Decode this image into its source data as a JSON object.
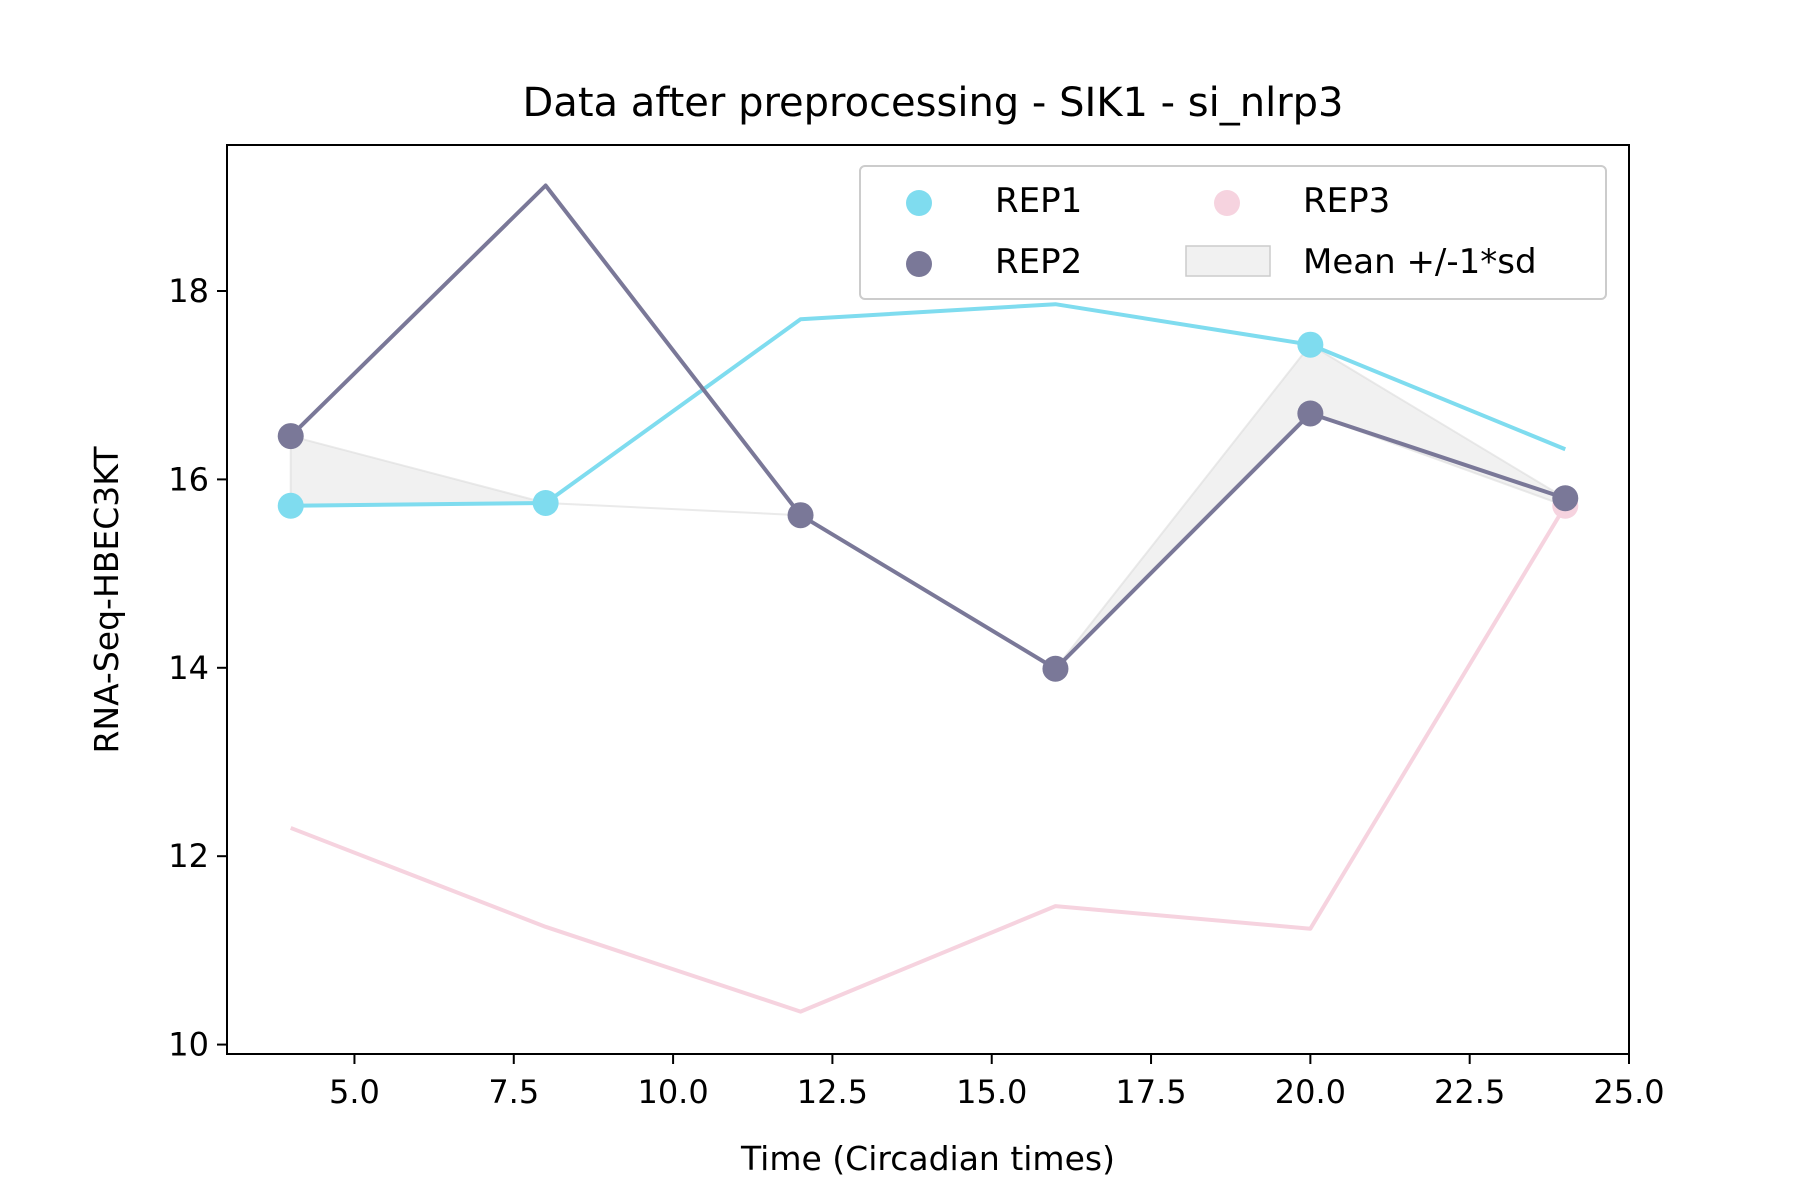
{
  "chart_data": {
    "type": "line",
    "title": "Data after preprocessing - SIK1 - si_nlrp3",
    "xlabel": "Time (Circadian times)",
    "ylabel": "RNA-Seq-HBEC3KT",
    "xlim": [
      3.0,
      25.0
    ],
    "ylim": [
      9.9,
      19.55
    ],
    "x_ticks": [
      5.0,
      7.5,
      10.0,
      12.5,
      15.0,
      17.5,
      20.0,
      22.5,
      25.0
    ],
    "x_tick_labels": [
      "5.0",
      "7.5",
      "10.0",
      "12.5",
      "15.0",
      "17.5",
      "20.0",
      "22.5",
      "25.0"
    ],
    "y_ticks": [
      10,
      12,
      14,
      16,
      18
    ],
    "y_tick_labels": [
      "10",
      "12",
      "14",
      "16",
      "18"
    ],
    "grid": false,
    "legend_position": "top-right",
    "legend_columns": 2,
    "x": [
      4,
      8,
      12,
      16,
      20,
      24
    ],
    "series": [
      {
        "name": "REP1",
        "color": "#7fdcef",
        "values": [
          15.72,
          15.75,
          17.7,
          17.86,
          17.43,
          16.32
        ],
        "markers": [
          true,
          true,
          false,
          false,
          true,
          false
        ]
      },
      {
        "name": "REP2",
        "color": "#7a7898",
        "values": [
          16.46,
          19.12,
          15.62,
          13.99,
          16.7,
          15.8
        ],
        "markers": [
          true,
          false,
          true,
          true,
          true,
          true
        ]
      },
      {
        "name": "REP3",
        "color": "#f6d3df",
        "values": [
          12.3,
          11.25,
          10.35,
          11.47,
          11.23,
          15.72
        ],
        "markers": [
          false,
          false,
          false,
          false,
          false,
          true
        ]
      }
    ],
    "band": {
      "name": "Mean +/-1*sd",
      "color": "#dcdcdc",
      "x": [
        4,
        8,
        12,
        16,
        20,
        24
      ],
      "upper": [
        16.46,
        15.75,
        15.62,
        13.99,
        17.43,
        15.8
      ],
      "lower": [
        15.72,
        15.75,
        15.62,
        13.99,
        16.7,
        15.72
      ]
    }
  }
}
